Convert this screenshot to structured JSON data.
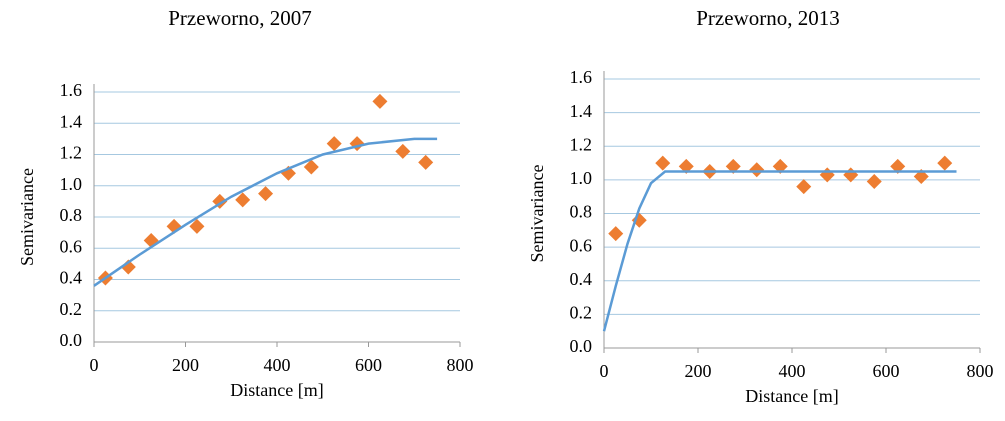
{
  "chart_data": [
    {
      "type": "scatter",
      "title": "Przeworno, 2007",
      "xlabel": "Distance [m]",
      "ylabel": "Semivariance",
      "xlim": [
        0,
        800
      ],
      "xticks": [
        0,
        200,
        400,
        600,
        800
      ],
      "ylim": [
        0,
        1.6
      ],
      "yticks": [
        {
          "value": 0,
          "label": "0.0"
        },
        0.2,
        0.4,
        0.6,
        0.8,
        {
          "value": 1,
          "label": "1.0"
        },
        1.2,
        1.4,
        1.6
      ],
      "grid": true,
      "series": [
        {
          "style": "marker",
          "color": "#ed7d31",
          "x": [
            25,
            75,
            125,
            175,
            225,
            275,
            325,
            375,
            425,
            475,
            525,
            575,
            625,
            675,
            725
          ],
          "values": [
            0.41,
            0.48,
            0.65,
            0.74,
            0.74,
            0.9,
            0.91,
            0.95,
            1.08,
            1.12,
            1.27,
            1.27,
            1.54,
            1.22,
            1.15
          ]
        },
        {
          "style": "line",
          "color": "#5b9bd5",
          "x": [
            0,
            100,
            200,
            300,
            400,
            500,
            600,
            700,
            750
          ],
          "values": [
            0.36,
            0.56,
            0.75,
            0.93,
            1.08,
            1.2,
            1.27,
            1.3,
            1.3
          ]
        }
      ]
    },
    {
      "type": "scatter",
      "title": "Przeworno, 2013",
      "xlabel": "Distance [m]",
      "ylabel": "Semivariance",
      "xlim": [
        0,
        800
      ],
      "xticks": [
        0,
        200,
        400,
        600,
        800
      ],
      "ylim": [
        0,
        1.6
      ],
      "yticks": [
        {
          "value": 0,
          "label": "0.0"
        },
        0.2,
        0.4,
        0.6,
        0.8,
        {
          "value": 1,
          "label": "1.0"
        },
        1.2,
        1.4,
        1.6
      ],
      "grid": true,
      "series": [
        {
          "style": "marker",
          "color": "#ed7d31",
          "x": [
            25,
            75,
            125,
            175,
            225,
            275,
            325,
            375,
            425,
            475,
            525,
            575,
            625,
            675,
            725
          ],
          "values": [
            0.68,
            0.76,
            1.1,
            1.08,
            1.05,
            1.08,
            1.06,
            1.08,
            0.96,
            1.03,
            1.03,
            0.99,
            1.08,
            1.02,
            1.1
          ]
        },
        {
          "style": "line",
          "color": "#5b9bd5",
          "x": [
            0,
            25,
            50,
            75,
            100,
            130,
            750
          ],
          "values": [
            0.1,
            0.37,
            0.62,
            0.83,
            0.98,
            1.05,
            1.05
          ]
        }
      ]
    }
  ]
}
